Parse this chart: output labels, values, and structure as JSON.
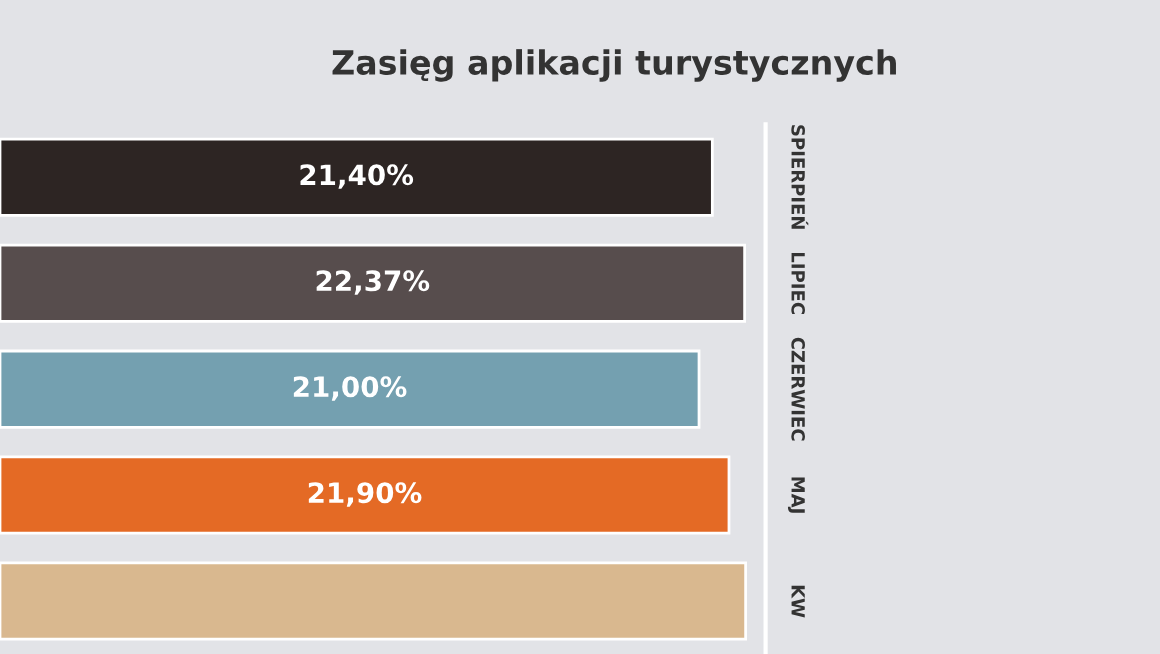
{
  "chart_data": {
    "type": "bar",
    "orientation": "horizontal",
    "title": "Zasięg aplikacji turystycznych",
    "categories": [
      "SPIERPIEŃ",
      "LIPIEC",
      "CZERWIEC",
      "MAJ",
      "KW"
    ],
    "values": [
      21.4,
      22.37,
      21.0,
      21.9,
      22.4
    ],
    "value_labels": [
      "21,40%",
      "22,37%",
      "21,00%",
      "21,90%",
      null
    ],
    "colors": [
      "#2d2523",
      "#574d4d",
      "#74a0b0",
      "#e46a25",
      "#d9b88f"
    ],
    "xlim": [
      0,
      23
    ],
    "tick_labels": "y",
    "grid": false,
    "legend": false
  }
}
